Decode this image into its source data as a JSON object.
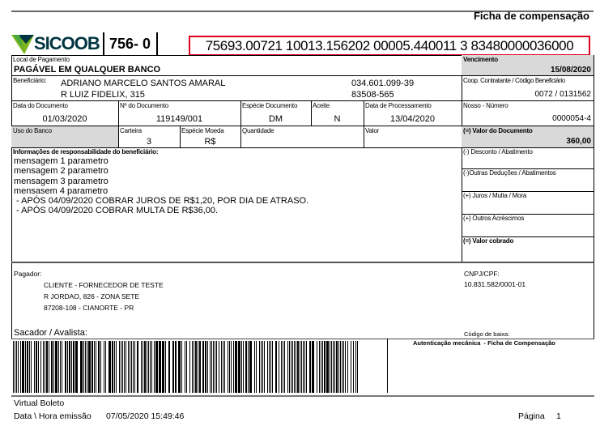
{
  "header": {
    "title": "Ficha de compensação",
    "bank_logo": "SICOOB",
    "bank_code": "756- 0",
    "digitable_line": "75693.00721 10013.156202 00005.440011 3 83480000036000"
  },
  "fields": {
    "local_pagamento": {
      "label": "Local de Pagamento",
      "value": "PAGÁVEL EM QUALQUER BANCO"
    },
    "vencimento": {
      "label": "Vencimento",
      "value": "15/08/2020"
    },
    "beneficiario": {
      "label": "Beneficiário:",
      "name": "ADRIANO MARCELO SANTOS AMARAL",
      "document": "034.601.099-39",
      "address": "R LUIZ FIDELIX, 315",
      "cep": "83508-565"
    },
    "coop": {
      "label": "Coop. Contratante / Código Beneficiário",
      "value": "0072 / 0131562"
    },
    "data_documento": {
      "label": "Data do Documento",
      "value": "01/03/2020"
    },
    "numero_documento": {
      "label": "Nº do Documento",
      "value": "119149/001"
    },
    "especie_documento": {
      "label": "Espécie Documento",
      "value": "DM"
    },
    "aceite": {
      "label": "Aceite",
      "value": "N"
    },
    "data_processamento": {
      "label": "Data de Processamento",
      "value": "13/04/2020"
    },
    "nosso_numero": {
      "label": "Nosso - Número",
      "value": "0000054-4"
    },
    "uso_banco": {
      "label": "Uso do Banco"
    },
    "carteira": {
      "label": "Carteira",
      "value": "3"
    },
    "especie_moeda": {
      "label": "Espécie Moeda",
      "value": "R$"
    },
    "quantidade": {
      "label": "Quantidade"
    },
    "valor": {
      "label": "Valor"
    },
    "valor_documento": {
      "label": "(=) Valor do Documento",
      "value": "360,00"
    }
  },
  "info": {
    "label": "Informações de responsabilidade do beneficiário:",
    "lines": [
      "mensagem 1 parametro",
      "mensagem 2 parametro",
      "mensagem 3 parametro",
      "mensasem 4 parametro",
      " - APÓS 04/09/2020 COBRAR JUROS DE R$1,20, POR DIA DE ATRASO.",
      " - APÓS 04/09/2020 COBRAR MULTA DE R$36,00."
    ]
  },
  "right_fields": [
    "(-) Desconto / Abatimento",
    "(-)Outras Deduções / Abatimentos",
    "(+) Juros / Multa / Mora",
    "(+) Outros Acréscimos",
    "(=) Valor cobrado"
  ],
  "pagador": {
    "label": "Pagador:",
    "lines": [
      "CLIENTE - FORNECEDOR DE TESTE",
      "R JORDAO, 826 - ZONA SETE",
      "87208-108 - CIANORTE - PR"
    ],
    "cnpj_label": "CNPJ/CPF:",
    "cnpj": "10.831.582/0001-01",
    "sacador_label": "Sacador / Avalista:",
    "codigo_baixa_label": "Código de baixa:"
  },
  "autenticacao": "Autenticação mecânica  - Ficha de Compensação",
  "footer": {
    "app": "Virtual Boleto",
    "emissao_label": "Data \\ Hora emissão",
    "emissao": "07/05/2020 15:49:46",
    "page_label": "Página",
    "page": "1"
  },
  "colors": {
    "highlight_border": "#e0001b",
    "logo_green": "#003641",
    "logo_accent": "#7db61c",
    "gray_cell": "#d9d9d9"
  }
}
